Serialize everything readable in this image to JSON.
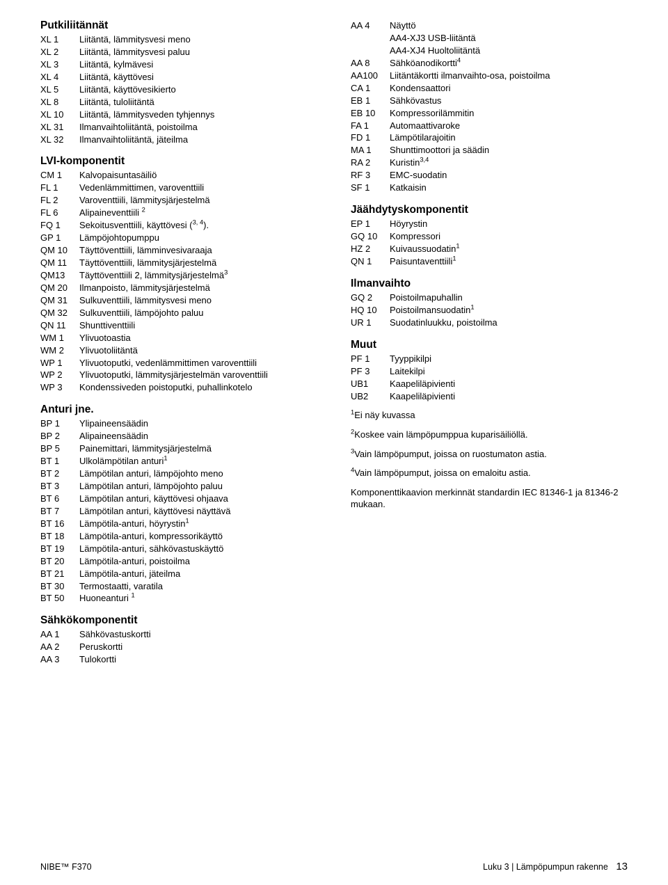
{
  "sections": {
    "putkiliitannat": {
      "title": "Putkiliitännät",
      "rows": [
        {
          "code": "XL 1",
          "desc": "Liitäntä, lämmitysvesi meno"
        },
        {
          "code": "XL 2",
          "desc": "Liitäntä, lämmitysvesi paluu"
        },
        {
          "code": "XL 3",
          "desc": "Liitäntä, kylmävesi"
        },
        {
          "code": "XL 4",
          "desc": "Liitäntä, käyttövesi"
        },
        {
          "code": "XL 5",
          "desc": "Liitäntä, käyttövesikierto"
        },
        {
          "code": "XL 8",
          "desc": "Liitäntä, tuloliitäntä"
        },
        {
          "code": "XL 10",
          "desc": "Liitäntä, lämmitysveden tyhjennys"
        },
        {
          "code": "XL 31",
          "desc": "Ilmanvaihtoliitäntä, poistoilma"
        },
        {
          "code": "XL 32",
          "desc": "Ilmanvaihtoliitäntä, jäteilma"
        }
      ]
    },
    "lvi": {
      "title": "LVI-komponentit",
      "rows": [
        {
          "code": "CM 1",
          "desc": "Kalvopaisuntasäiliö"
        },
        {
          "code": "FL 1",
          "desc": "Vedenlämmittimen, varoventtiili"
        },
        {
          "code": "FL 2",
          "desc": "Varoventtiili, lämmitysjärjestelmä"
        },
        {
          "code": "FL 6",
          "desc": "Alipaineventtiili <sup>2</sup>"
        },
        {
          "code": "FQ 1",
          "desc": "Sekoitusventtiili, käyttövesi (<sup>3, 4</sup>)."
        },
        {
          "code": "GP 1",
          "desc": "Lämpöjohtopumppu"
        },
        {
          "code": "QM 10",
          "desc": "Täyttöventtiili, lämminvesivaraaja"
        },
        {
          "code": "QM 11",
          "desc": "Täyttöventtiili, lämmitysjärjestelmä"
        },
        {
          "code": "QM13",
          "desc": "Täyttöventtiili 2, lämmitysjärjestelmä<sup>3</sup>"
        },
        {
          "code": "QM 20",
          "desc": "Ilmanpoisto, lämmitysjärjestelmä"
        },
        {
          "code": "QM 31",
          "desc": "Sulkuventtiili, lämmitysvesi meno"
        },
        {
          "code": "QM 32",
          "desc": "Sulkuventtiili, lämpöjohto paluu"
        },
        {
          "code": "QN 11",
          "desc": "Shunttiventtiili"
        },
        {
          "code": "WM 1",
          "desc": "Ylivuotoastia"
        },
        {
          "code": "WM 2",
          "desc": "Ylivuotoliitäntä"
        },
        {
          "code": "WP 1",
          "desc": "Ylivuotoputki, vedenlämmittimen varoventtiili"
        },
        {
          "code": "WP 2",
          "desc": "Ylivuotoputki, lämmitysjärjestelmän varoventtiili"
        },
        {
          "code": "WP 3",
          "desc": "Kondenssiveden poistoputki, puhallinkotelo"
        }
      ]
    },
    "anturi": {
      "title": "Anturi jne.",
      "rows": [
        {
          "code": "BP 1",
          "desc": "Ylipaineensäädin"
        },
        {
          "code": "BP 2",
          "desc": "Alipaineensäädin"
        },
        {
          "code": "BP 5",
          "desc": "Painemittari, lämmitysjärjestelmä"
        },
        {
          "code": "BT 1",
          "desc": "Ulkolämpötilan anturi<sup>1</sup>"
        },
        {
          "code": "BT 2",
          "desc": "Lämpötilan anturi, lämpöjohto meno"
        },
        {
          "code": "BT 3",
          "desc": "Lämpötilan anturi, lämpöjohto paluu"
        },
        {
          "code": "BT 6",
          "desc": "Lämpötilan anturi, käyttövesi ohjaava"
        },
        {
          "code": "BT 7",
          "desc": "Lämpötilan anturi, käyttövesi näyttävä"
        },
        {
          "code": "BT 16",
          "desc": "Lämpötila-anturi, höyrystin<sup>1</sup>"
        },
        {
          "code": "BT 18",
          "desc": "Lämpötila-anturi, kompressorikäyttö"
        },
        {
          "code": "BT 19",
          "desc": "Lämpötila-anturi, sähkövastuskäyttö"
        },
        {
          "code": "BT 20",
          "desc": "Lämpötila-anturi, poistoilma"
        },
        {
          "code": "BT 21",
          "desc": "Lämpötila-anturi, jäteilma"
        },
        {
          "code": "BT 30",
          "desc": "Termostaatti, varatila"
        },
        {
          "code": "BT 50",
          "desc": "Huoneanturi <sup>1</sup>"
        }
      ]
    },
    "sahko": {
      "title": "Sähkökomponentit",
      "rows": [
        {
          "code": "AA 1",
          "desc": "Sähkövastuskortti"
        },
        {
          "code": "AA 2",
          "desc": "Peruskortti"
        },
        {
          "code": "AA 3",
          "desc": "Tulokortti"
        }
      ]
    },
    "right_top": {
      "rows": [
        {
          "code": "AA 4",
          "desc": "Näyttö"
        }
      ],
      "sub": [
        "AA4-XJ3 USB-liitäntä",
        "AA4-XJ4 Huoltoliitäntä"
      ],
      "rows2": [
        {
          "code": "AA 8",
          "desc": "Sähköanodikortti<sup>4</sup>"
        },
        {
          "code": "AA100",
          "desc": "Liitäntäkortti ilmanvaihto-osa, poistoilma"
        },
        {
          "code": "CA 1",
          "desc": "Kondensaattori"
        },
        {
          "code": "EB 1",
          "desc": "Sähkövastus"
        },
        {
          "code": "EB 10",
          "desc": "Kompressorilämmitin"
        },
        {
          "code": "FA 1",
          "desc": "Automaattivaroke"
        },
        {
          "code": "FD 1",
          "desc": "Lämpötilarajoitin"
        },
        {
          "code": "MA 1",
          "desc": "Shunttimoottori ja säädin"
        },
        {
          "code": "RA 2",
          "desc": "Kuristin<sup>3,4</sup>"
        },
        {
          "code": "RF 3",
          "desc": "EMC-suodatin"
        },
        {
          "code": "SF 1",
          "desc": "Katkaisin"
        }
      ]
    },
    "jaahdytys": {
      "title": "Jäähdytyskomponentit",
      "rows": [
        {
          "code": "EP 1",
          "desc": "Höyrystin"
        },
        {
          "code": "GQ 10",
          "desc": "Kompressori"
        },
        {
          "code": "HZ 2",
          "desc": "Kuivaussuodatin<sup>1</sup>"
        },
        {
          "code": "QN 1",
          "desc": "Paisuntaventtiili<sup>1</sup>"
        }
      ]
    },
    "ilmanvaihto": {
      "title": "Ilmanvaihto",
      "rows": [
        {
          "code": "GQ 2",
          "desc": "Poistoilmapuhallin"
        },
        {
          "code": "HQ 10",
          "desc": "Poistoilmansuodatin<sup>1</sup>"
        },
        {
          "code": "UR 1",
          "desc": "Suodatinluukku, poistoilma"
        }
      ]
    },
    "muut": {
      "title": "Muut",
      "rows": [
        {
          "code": "PF 1",
          "desc": "Tyyppikilpi"
        },
        {
          "code": "PF 3",
          "desc": "Laitekilpi"
        },
        {
          "code": "UB1",
          "desc": "Kaapeliläpivienti"
        },
        {
          "code": "UB2",
          "desc": "Kaapeliläpivienti"
        }
      ]
    },
    "notes": [
      "<sup>1</sup>Ei näy kuvassa",
      "<sup>2</sup>Koskee vain lämpöpumppua kuparisäiliöllä.",
      "<sup>3</sup>Vain lämpöpumput, joissa on ruostumaton astia.",
      "<sup>4</sup>Vain lämpöpumput, joissa on emaloitu astia.",
      "Komponenttikaavion merkinnät standardin IEC 81346-1 ja 81346-2 mukaan."
    ]
  },
  "footer": {
    "left": "NIBE™ F370",
    "right_label": "Luku 3 ",
    "right_text": "| Lämpöpumpun rakenne",
    "page": "13"
  }
}
